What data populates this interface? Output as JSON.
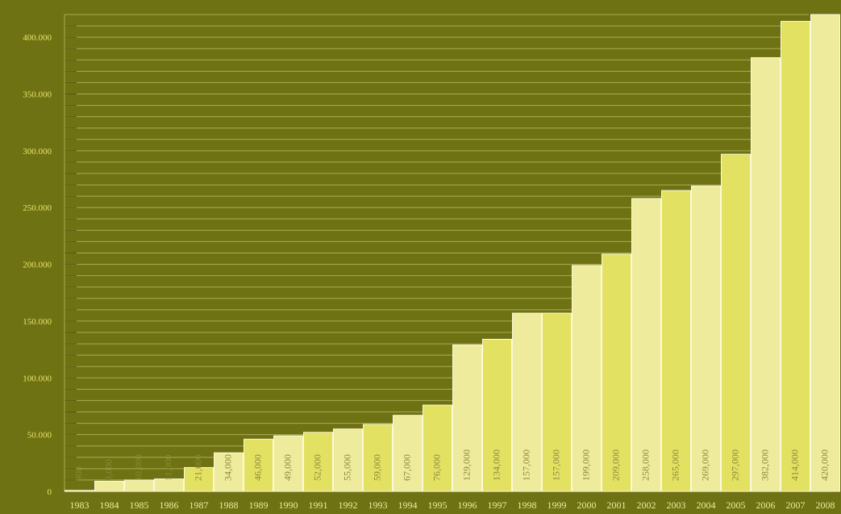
{
  "colors": {
    "background": "#6f7213",
    "gridline": "#a9ab55",
    "axis_text": "#e9e26a",
    "year_text": "#f0eba0",
    "bar_light": "#efeb9c",
    "bar_yellow": "#e3e162",
    "bar_edge": "#fbfad8",
    "bar_label": "#8a8a3a"
  },
  "chart_data": {
    "type": "bar",
    "title": "",
    "xlabel": "",
    "ylabel": "",
    "ylim": [
      0,
      420000
    ],
    "grid": true,
    "legend": "none",
    "y_ticks": [
      {
        "value": 0,
        "label": "0"
      },
      {
        "value": 50000,
        "label": "50.000"
      },
      {
        "value": 100000,
        "label": "100.000"
      },
      {
        "value": 150000,
        "label": "150.000"
      },
      {
        "value": 200000,
        "label": "200.000"
      },
      {
        "value": 250000,
        "label": "250.000"
      },
      {
        "value": 300000,
        "label": "300.000"
      },
      {
        "value": 350000,
        "label": "350.000"
      },
      {
        "value": 400000,
        "label": "400.000"
      }
    ],
    "categories": [
      "1983",
      "1984",
      "1985",
      "1986",
      "1987",
      "1988",
      "1989",
      "1990",
      "1991",
      "1992",
      "1993",
      "1994",
      "1995",
      "1996",
      "1997",
      "1998",
      "1999",
      "2000",
      "2001",
      "2002",
      "2003",
      "2004",
      "2005",
      "2006",
      "2007",
      "2008"
    ],
    "values": [
      900,
      9000,
      10000,
      11000,
      21000,
      34000,
      46000,
      49000,
      52000,
      55000,
      59000,
      67000,
      76000,
      129000,
      134000,
      157000,
      157000,
      199000,
      209000,
      258000,
      265000,
      269000,
      297000,
      382000,
      414000,
      420000
    ],
    "data_labels": [
      "900",
      "9,000",
      "10,000",
      "11,000",
      "21,000",
      "34,000",
      "46,000",
      "49,000",
      "52,000",
      "55,000",
      "59,000",
      "67,000",
      "76,000",
      "129,000",
      "134,000",
      "157,000",
      "157,000",
      "199,000",
      "209,000",
      "258,000",
      "265,000",
      "269,000",
      "297,000",
      "382,000",
      "414,000",
      "420,000"
    ],
    "bar_tones": [
      "yellow",
      "light",
      "light",
      "light",
      "yellow",
      "light",
      "yellow",
      "light",
      "yellow",
      "light",
      "yellow",
      "light",
      "yellow",
      "light",
      "yellow",
      "light",
      "yellow",
      "light",
      "yellow",
      "light",
      "yellow",
      "light",
      "yellow",
      "light",
      "yellow",
      "light"
    ]
  }
}
